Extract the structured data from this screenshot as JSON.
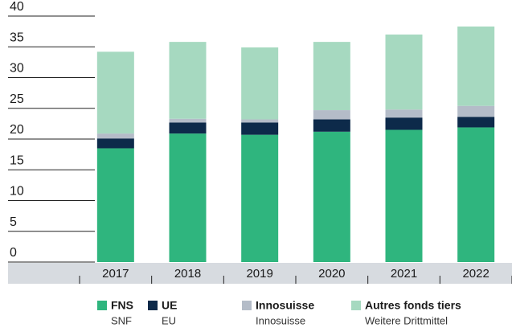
{
  "chart_data": {
    "type": "stacked-bar",
    "categories": [
      "2017",
      "2018",
      "2019",
      "2020",
      "2021",
      "2022"
    ],
    "series": [
      {
        "name": "FNS",
        "subtitle": "SNF",
        "color": "#2fb57e",
        "values": [
          18.5,
          20.9,
          20.7,
          21.2,
          21.5,
          21.9
        ]
      },
      {
        "name": "UE",
        "subtitle": "EU",
        "color": "#0d2a4a",
        "values": [
          1.6,
          1.8,
          2.0,
          2.0,
          2.0,
          1.7
        ]
      },
      {
        "name": "Innosuisse",
        "subtitle": "Innosuisse",
        "color": "#b4bcc8",
        "values": [
          0.8,
          0.6,
          0.5,
          1.5,
          1.3,
          1.8
        ]
      },
      {
        "name": "Autres fonds tiers",
        "subtitle": "Weitere Drittmittel",
        "color": "#a6d9c0",
        "values": [
          13.3,
          12.5,
          11.7,
          11.1,
          12.2,
          12.9
        ]
      }
    ],
    "ylim": [
      0,
      40
    ],
    "yticks": [
      0,
      5,
      10,
      15,
      20,
      25,
      30,
      35,
      40
    ],
    "grid": true
  }
}
